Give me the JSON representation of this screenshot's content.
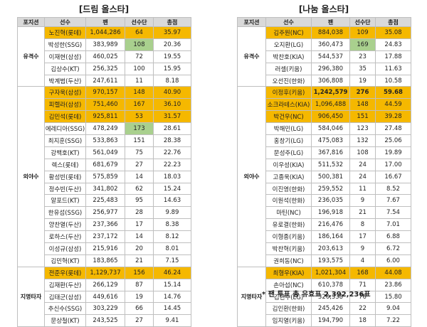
{
  "left_title": "[드림 올스타]",
  "right_title": "[나눔 올스타]",
  "headers": [
    "포지션",
    "선수",
    "팬",
    "선수단",
    "총점"
  ],
  "footnote": "* 팬 투표 총 유효표 2,392,236표",
  "colors": {
    "highlight": "#f5b800",
    "green": "#a9d08e",
    "header": "#d9d9d9",
    "border": "#bfbfbf"
  },
  "dream": {
    "groups": [
      {
        "position": "유격수",
        "rows": [
          {
            "name": "노진혁(롯데)",
            "fan": "1,044,286",
            "team": "64",
            "total": "35.97",
            "hl": true
          },
          {
            "name": "박성한(SSG)",
            "fan": "383,989",
            "team": "108",
            "total": "20.36",
            "green": true
          },
          {
            "name": "이재현(삼성)",
            "fan": "460,025",
            "team": "72",
            "total": "19.55"
          },
          {
            "name": "김상수(KT)",
            "fan": "256,325",
            "team": "100",
            "total": "15.95"
          },
          {
            "name": "박계범(두산)",
            "fan": "247,611",
            "team": "11",
            "total": "8.18"
          }
        ]
      },
      {
        "position": "외야수",
        "rows": [
          {
            "name": "구자욱(삼성)",
            "fan": "970,157",
            "team": "148",
            "total": "40.90",
            "hl": true
          },
          {
            "name": "피렐라(삼성)",
            "fan": "751,460",
            "team": "167",
            "total": "36.10",
            "hl": true
          },
          {
            "name": "김민석(롯데)",
            "fan": "925,811",
            "team": "53",
            "total": "31.57",
            "hl": true
          },
          {
            "name": "에레디아(SSG)",
            "fan": "478,249",
            "team": "173",
            "total": "28.61",
            "green": true
          },
          {
            "name": "최지훈(SSG)",
            "fan": "533,863",
            "team": "151",
            "total": "28.38"
          },
          {
            "name": "강백호(KT)",
            "fan": "561,049",
            "team": "75",
            "total": "22.76"
          },
          {
            "name": "렉스(롯데)",
            "fan": "681,679",
            "team": "27",
            "total": "22.23"
          },
          {
            "name": "황성빈(롯데)",
            "fan": "575,859",
            "team": "14",
            "total": "18.03"
          },
          {
            "name": "정수빈(두산)",
            "fan": "341,802",
            "team": "62",
            "total": "15.24"
          },
          {
            "name": "알포드(KT)",
            "fan": "225,483",
            "team": "95",
            "total": "14.63"
          },
          {
            "name": "한유섬(SSG)",
            "fan": "256,977",
            "team": "28",
            "total": "9.89"
          },
          {
            "name": "양찬열(두산)",
            "fan": "237,366",
            "team": "17",
            "total": "8.38"
          },
          {
            "name": "로하스(두산)",
            "fan": "237,172",
            "team": "14",
            "total": "8.12"
          },
          {
            "name": "이성규(삼성)",
            "fan": "215,916",
            "team": "20",
            "total": "8.01"
          },
          {
            "name": "김민혁(KT)",
            "fan": "183,865",
            "team": "21",
            "total": "7.15"
          }
        ]
      },
      {
        "position": "지명타자",
        "rows": [
          {
            "name": "전준우(롯데)",
            "fan": "1,129,737",
            "team": "156",
            "total": "46.24",
            "hl": true
          },
          {
            "name": "김재환(두산)",
            "fan": "266,129",
            "team": "87",
            "total": "15.14"
          },
          {
            "name": "김태군(삼성)",
            "fan": "449,616",
            "team": "19",
            "total": "14.76"
          },
          {
            "name": "추신수(SSG)",
            "fan": "303,229",
            "team": "66",
            "total": "14.45"
          },
          {
            "name": "문상철(KT)",
            "fan": "243,525",
            "team": "27",
            "total": "9.41"
          }
        ]
      }
    ]
  },
  "nanum": {
    "groups": [
      {
        "position": "유격수",
        "rows": [
          {
            "name": "김주원(NC)",
            "fan": "884,038",
            "team": "109",
            "total": "35.08",
            "hl": true
          },
          {
            "name": "오지환(LG)",
            "fan": "360,473",
            "team": "169",
            "total": "24.83",
            "green": true
          },
          {
            "name": "박찬호(KIA)",
            "fan": "544,537",
            "team": "23",
            "total": "17.88"
          },
          {
            "name": "러셀(키움)",
            "fan": "296,380",
            "team": "35",
            "total": "11.63"
          },
          {
            "name": "오선진(한화)",
            "fan": "306,808",
            "team": "19",
            "total": "10.58"
          }
        ]
      },
      {
        "position": "외야수",
        "rows": [
          {
            "name": "이정후(키움)",
            "fan": "1,242,579",
            "team": "276",
            "total": "59.68",
            "hl": true,
            "bold": true
          },
          {
            "name": "소크라테스(KIA)",
            "fan": "1,096,488",
            "team": "148",
            "total": "44.59",
            "hl": true
          },
          {
            "name": "박건우(NC)",
            "fan": "906,450",
            "team": "151",
            "total": "39.28",
            "hl": true
          },
          {
            "name": "박해민(LG)",
            "fan": "584,046",
            "team": "123",
            "total": "27.48"
          },
          {
            "name": "홍창기(LG)",
            "fan": "475,083",
            "team": "132",
            "total": "25.06"
          },
          {
            "name": "문성주(LG)",
            "fan": "367,816",
            "team": "108",
            "total": "19.89"
          },
          {
            "name": "이우성(KIA)",
            "fan": "511,532",
            "team": "24",
            "total": "17.00"
          },
          {
            "name": "고종욱(KIA)",
            "fan": "500,381",
            "team": "24",
            "total": "16.67"
          },
          {
            "name": "이진영(한화)",
            "fan": "259,552",
            "team": "11",
            "total": "8.52"
          },
          {
            "name": "이원석(한화)",
            "fan": "236,035",
            "team": "9",
            "total": "7.67"
          },
          {
            "name": "마틴(NC)",
            "fan": "196,918",
            "team": "21",
            "total": "7.54"
          },
          {
            "name": "유로결(한화)",
            "fan": "216,476",
            "team": "8",
            "total": "7.01"
          },
          {
            "name": "이형종(키움)",
            "fan": "186,164",
            "team": "17",
            "total": "6.88"
          },
          {
            "name": "박찬혁(키움)",
            "fan": "203,613",
            "team": "9",
            "total": "6.72"
          },
          {
            "name": "권희동(NC)",
            "fan": "193,575",
            "team": "4",
            "total": "6.00"
          }
        ]
      },
      {
        "position": "지명타자",
        "rows": [
          {
            "name": "최형우(KIA)",
            "fan": "1,021,304",
            "team": "168",
            "total": "44.08",
            "hl": true
          },
          {
            "name": "손아섭(NC)",
            "fan": "610,378",
            "team": "71",
            "total": "23.86"
          },
          {
            "name": "김현수(LG)",
            "fan": "320,338",
            "team": "76",
            "total": "15.80"
          },
          {
            "name": "김인환(한화)",
            "fan": "245,426",
            "team": "22",
            "total": "9.04"
          },
          {
            "name": "임지열(키움)",
            "fan": "194,790",
            "team": "18",
            "total": "7.22"
          }
        ]
      }
    ]
  }
}
